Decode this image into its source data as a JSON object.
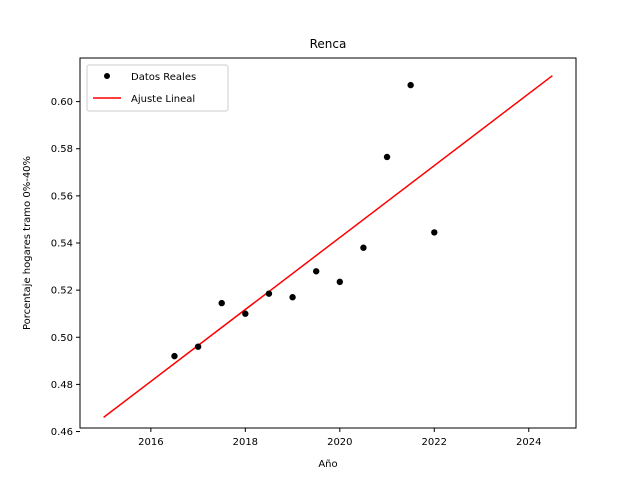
{
  "chart_data": {
    "type": "scatter",
    "title": "Renca",
    "xlabel": "Año",
    "ylabel": "Porcentaje hogares tramo 0%-40%",
    "xlim": [
      2014.5,
      2025.0
    ],
    "ylim": [
      0.4615,
      0.6185
    ],
    "xticks": [
      2016,
      2018,
      2020,
      2022,
      2024
    ],
    "xtick_labels": [
      "2016",
      "2018",
      "2020",
      "2022",
      "2024"
    ],
    "yticks": [
      0.46,
      0.48,
      0.5,
      0.52,
      0.54,
      0.56,
      0.58,
      0.6
    ],
    "ytick_labels": [
      "0.46",
      "0.48",
      "0.50",
      "0.52",
      "0.54",
      "0.56",
      "0.58",
      "0.60"
    ],
    "legend_position": "upper-left",
    "series": [
      {
        "name": "Datos Reales",
        "kind": "scatter",
        "color": "#000000",
        "x": [
          2016.5,
          2017.0,
          2017.5,
          2018.0,
          2018.5,
          2019.0,
          2019.5,
          2020.0,
          2020.5,
          2021.0,
          2021.5,
          2022.0
        ],
        "y": [
          0.492,
          0.496,
          0.5145,
          0.51,
          0.5185,
          0.517,
          0.528,
          0.5235,
          0.538,
          0.5765,
          0.607,
          0.5445
        ]
      },
      {
        "name": "Ajuste Lineal",
        "kind": "line",
        "color": "#ff0000",
        "x": [
          2015.0,
          2024.5
        ],
        "y": [
          0.466,
          0.611
        ]
      }
    ]
  }
}
